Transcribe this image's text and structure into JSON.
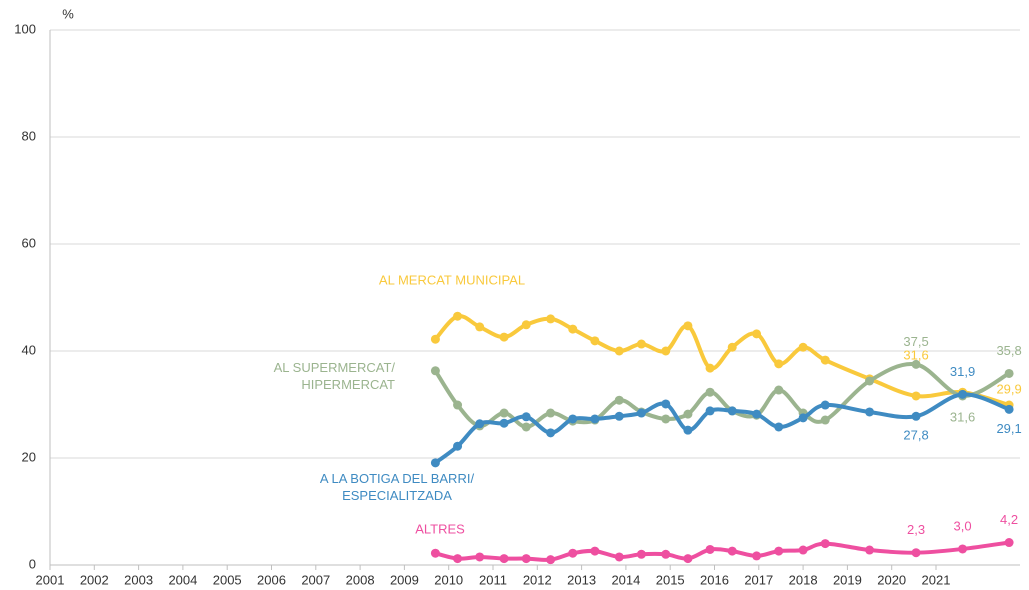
{
  "chart_data": {
    "type": "line",
    "unit": "%",
    "xlim": [
      2001,
      2023
    ],
    "xticks": [
      2001,
      2002,
      2003,
      2004,
      2005,
      2006,
      2007,
      2008,
      2009,
      2010,
      2011,
      2012,
      2013,
      2014,
      2015,
      2016,
      2017,
      2018,
      2019,
      2020,
      2021
    ],
    "ylim": [
      0,
      100
    ],
    "yticks": [
      0,
      20,
      40,
      60,
      80,
      100
    ],
    "grid": true,
    "x": [
      2009.7,
      2010.2,
      2010.7,
      2011.25,
      2011.75,
      2012.3,
      2012.8,
      2013.3,
      2013.85,
      2014.35,
      2014.9,
      2015.4,
      2015.9,
      2016.4,
      2016.95,
      2017.45,
      2018,
      2018.5,
      2019.5,
      2020.55,
      2021.6,
      2022.65
    ],
    "series": [
      {
        "name": "AL MERCAT MUNICIPAL",
        "color": "#f9c93c",
        "values": [
          42.2,
          46.5,
          44.5,
          42.6,
          44.9,
          46.0,
          44.1,
          41.9,
          40.0,
          41.3,
          40.0,
          44.7,
          36.8,
          40.7,
          43.2,
          37.6,
          40.7,
          38.3,
          34.8,
          31.6,
          32.3,
          29.9
        ],
        "value_labels": {
          "19": "31,6",
          "21": "29,9"
        }
      },
      {
        "name": "AL SUPERMERCAT/\nHIPERMERCAT",
        "color": "#9bb48f",
        "values": [
          36.3,
          29.9,
          26.0,
          28.4,
          25.8,
          28.4,
          26.9,
          27.1,
          30.8,
          28.6,
          27.3,
          28.2,
          32.3,
          28.8,
          28.0,
          32.7,
          28.4,
          27.1,
          34.4,
          37.5,
          31.6,
          35.8
        ],
        "value_labels": {
          "19": "37,5",
          "20": "31,6",
          "21": "35,8"
        }
      },
      {
        "name": "A LA BOTIGA DEL BARRI/\nESPECIALITZADA",
        "color": "#3f8bc2",
        "values": [
          19.1,
          22.2,
          26.4,
          26.5,
          27.7,
          24.7,
          27.3,
          27.3,
          27.8,
          28.4,
          30.1,
          25.2,
          28.8,
          28.8,
          28.2,
          25.8,
          27.5,
          29.9,
          28.6,
          27.8,
          31.9,
          29.1
        ],
        "value_labels": {
          "19": "27,8",
          "20": "31,9",
          "21": "29,1"
        }
      },
      {
        "name": "ALTRES",
        "color": "#ee4fa0",
        "values": [
          2.2,
          1.2,
          1.5,
          1.2,
          1.2,
          1.0,
          2.2,
          2.6,
          1.5,
          2.0,
          2.0,
          1.2,
          2.9,
          2.6,
          1.7,
          2.6,
          2.8,
          4.0,
          2.8,
          2.3,
          3.0,
          4.2
        ],
        "value_labels": {
          "19": "2,3",
          "20": "3,0",
          "21": "4,2"
        }
      }
    ]
  }
}
